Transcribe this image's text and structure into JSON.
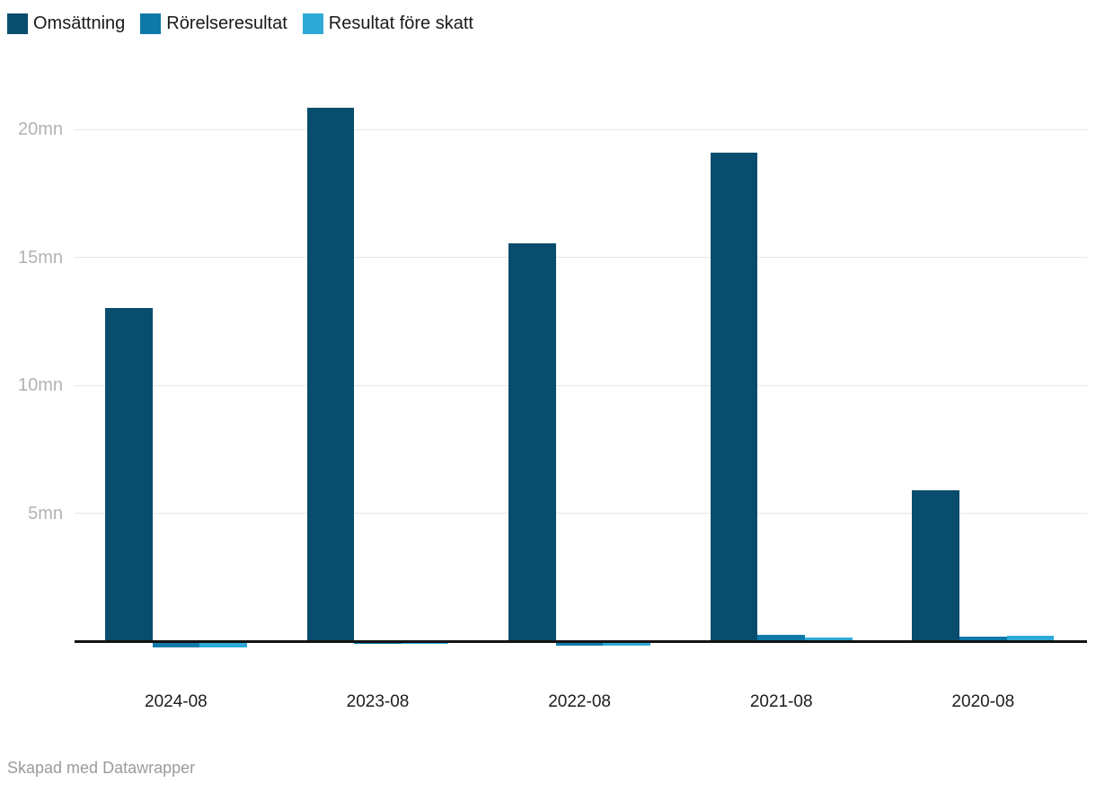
{
  "chart_data": {
    "type": "bar",
    "unit": "mn",
    "categories": [
      "2024-08",
      "2023-08",
      "2022-08",
      "2021-08",
      "2020-08"
    ],
    "series": [
      {
        "name": "Omsättning",
        "slug": "omsattning",
        "color": "#084d6e",
        "values": [
          13.0,
          20.8,
          15.5,
          19.05,
          5.85
        ]
      },
      {
        "name": "Rörelseresultat",
        "slug": "rorelseresultat",
        "color": "#0e7aa8",
        "values": [
          -0.26,
          -0.12,
          -0.18,
          0.2,
          0.13
        ]
      },
      {
        "name": "Resultat före skatt",
        "slug": "resultat-fore-skatt",
        "color": "#2ea9d6",
        "values": [
          -0.26,
          -0.12,
          -0.18,
          0.11,
          0.16
        ]
      }
    ],
    "yticks": [
      {
        "value": 5,
        "label": "5mn"
      },
      {
        "value": 10,
        "label": "10mn"
      },
      {
        "value": 15,
        "label": "15mn"
      },
      {
        "value": 20,
        "label": "20mn"
      }
    ],
    "ylim": [
      -0.9,
      21.7
    ],
    "grid": true,
    "legend_position": "top-left"
  },
  "footer": {
    "text": "Skapad med Datawrapper"
  },
  "colors": {
    "grid": "#e7e7e7",
    "axis_line": "#131313",
    "y_tick_label": "#b3b3b3",
    "x_tick_label": "#1d1d1d",
    "footer_text": "#9b9b9b",
    "background": "#ffffff"
  }
}
